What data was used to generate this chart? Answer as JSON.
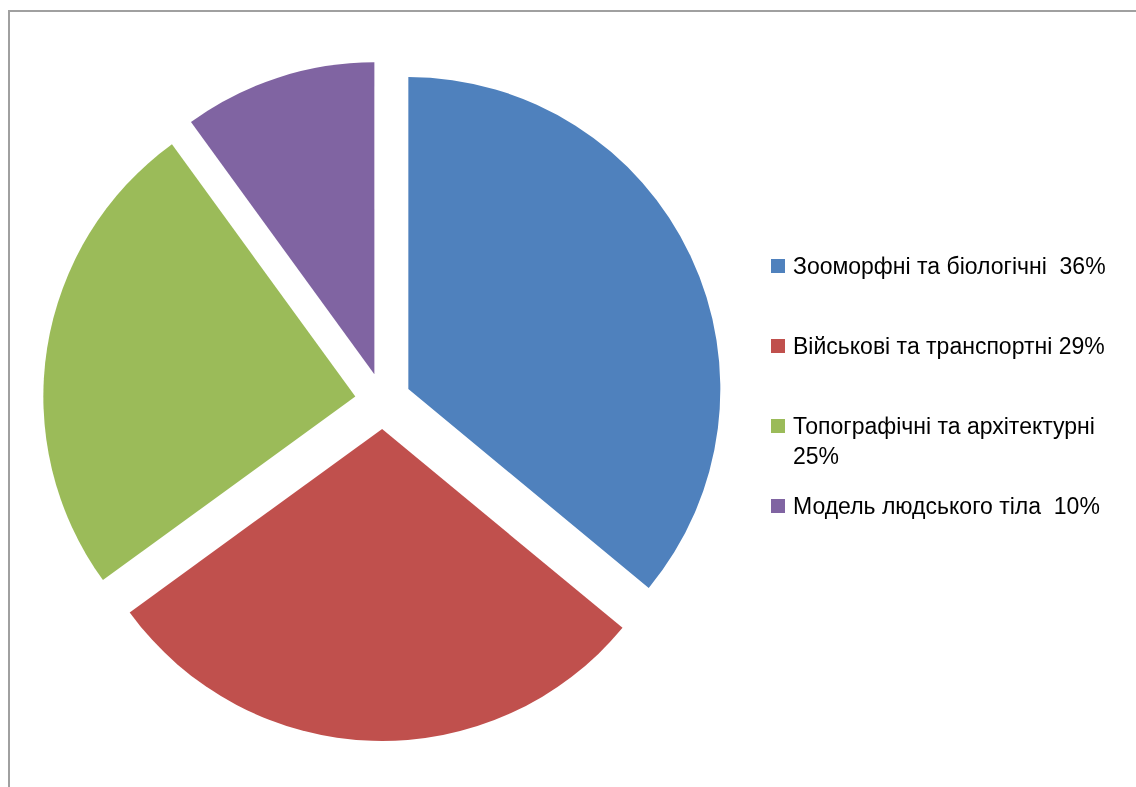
{
  "chart_data": {
    "type": "pie",
    "categories": [
      "Зооморфні та біологічні  36%",
      "Військові та транспортні 29%",
      "Топографічні та архітектурні 25%",
      "Модель людського тіла  10%"
    ],
    "values": [
      36,
      29,
      25,
      10
    ],
    "colors": [
      "#4f81bd",
      "#c0504d",
      "#9bbb59",
      "#8064a2"
    ],
    "legend": "right"
  }
}
